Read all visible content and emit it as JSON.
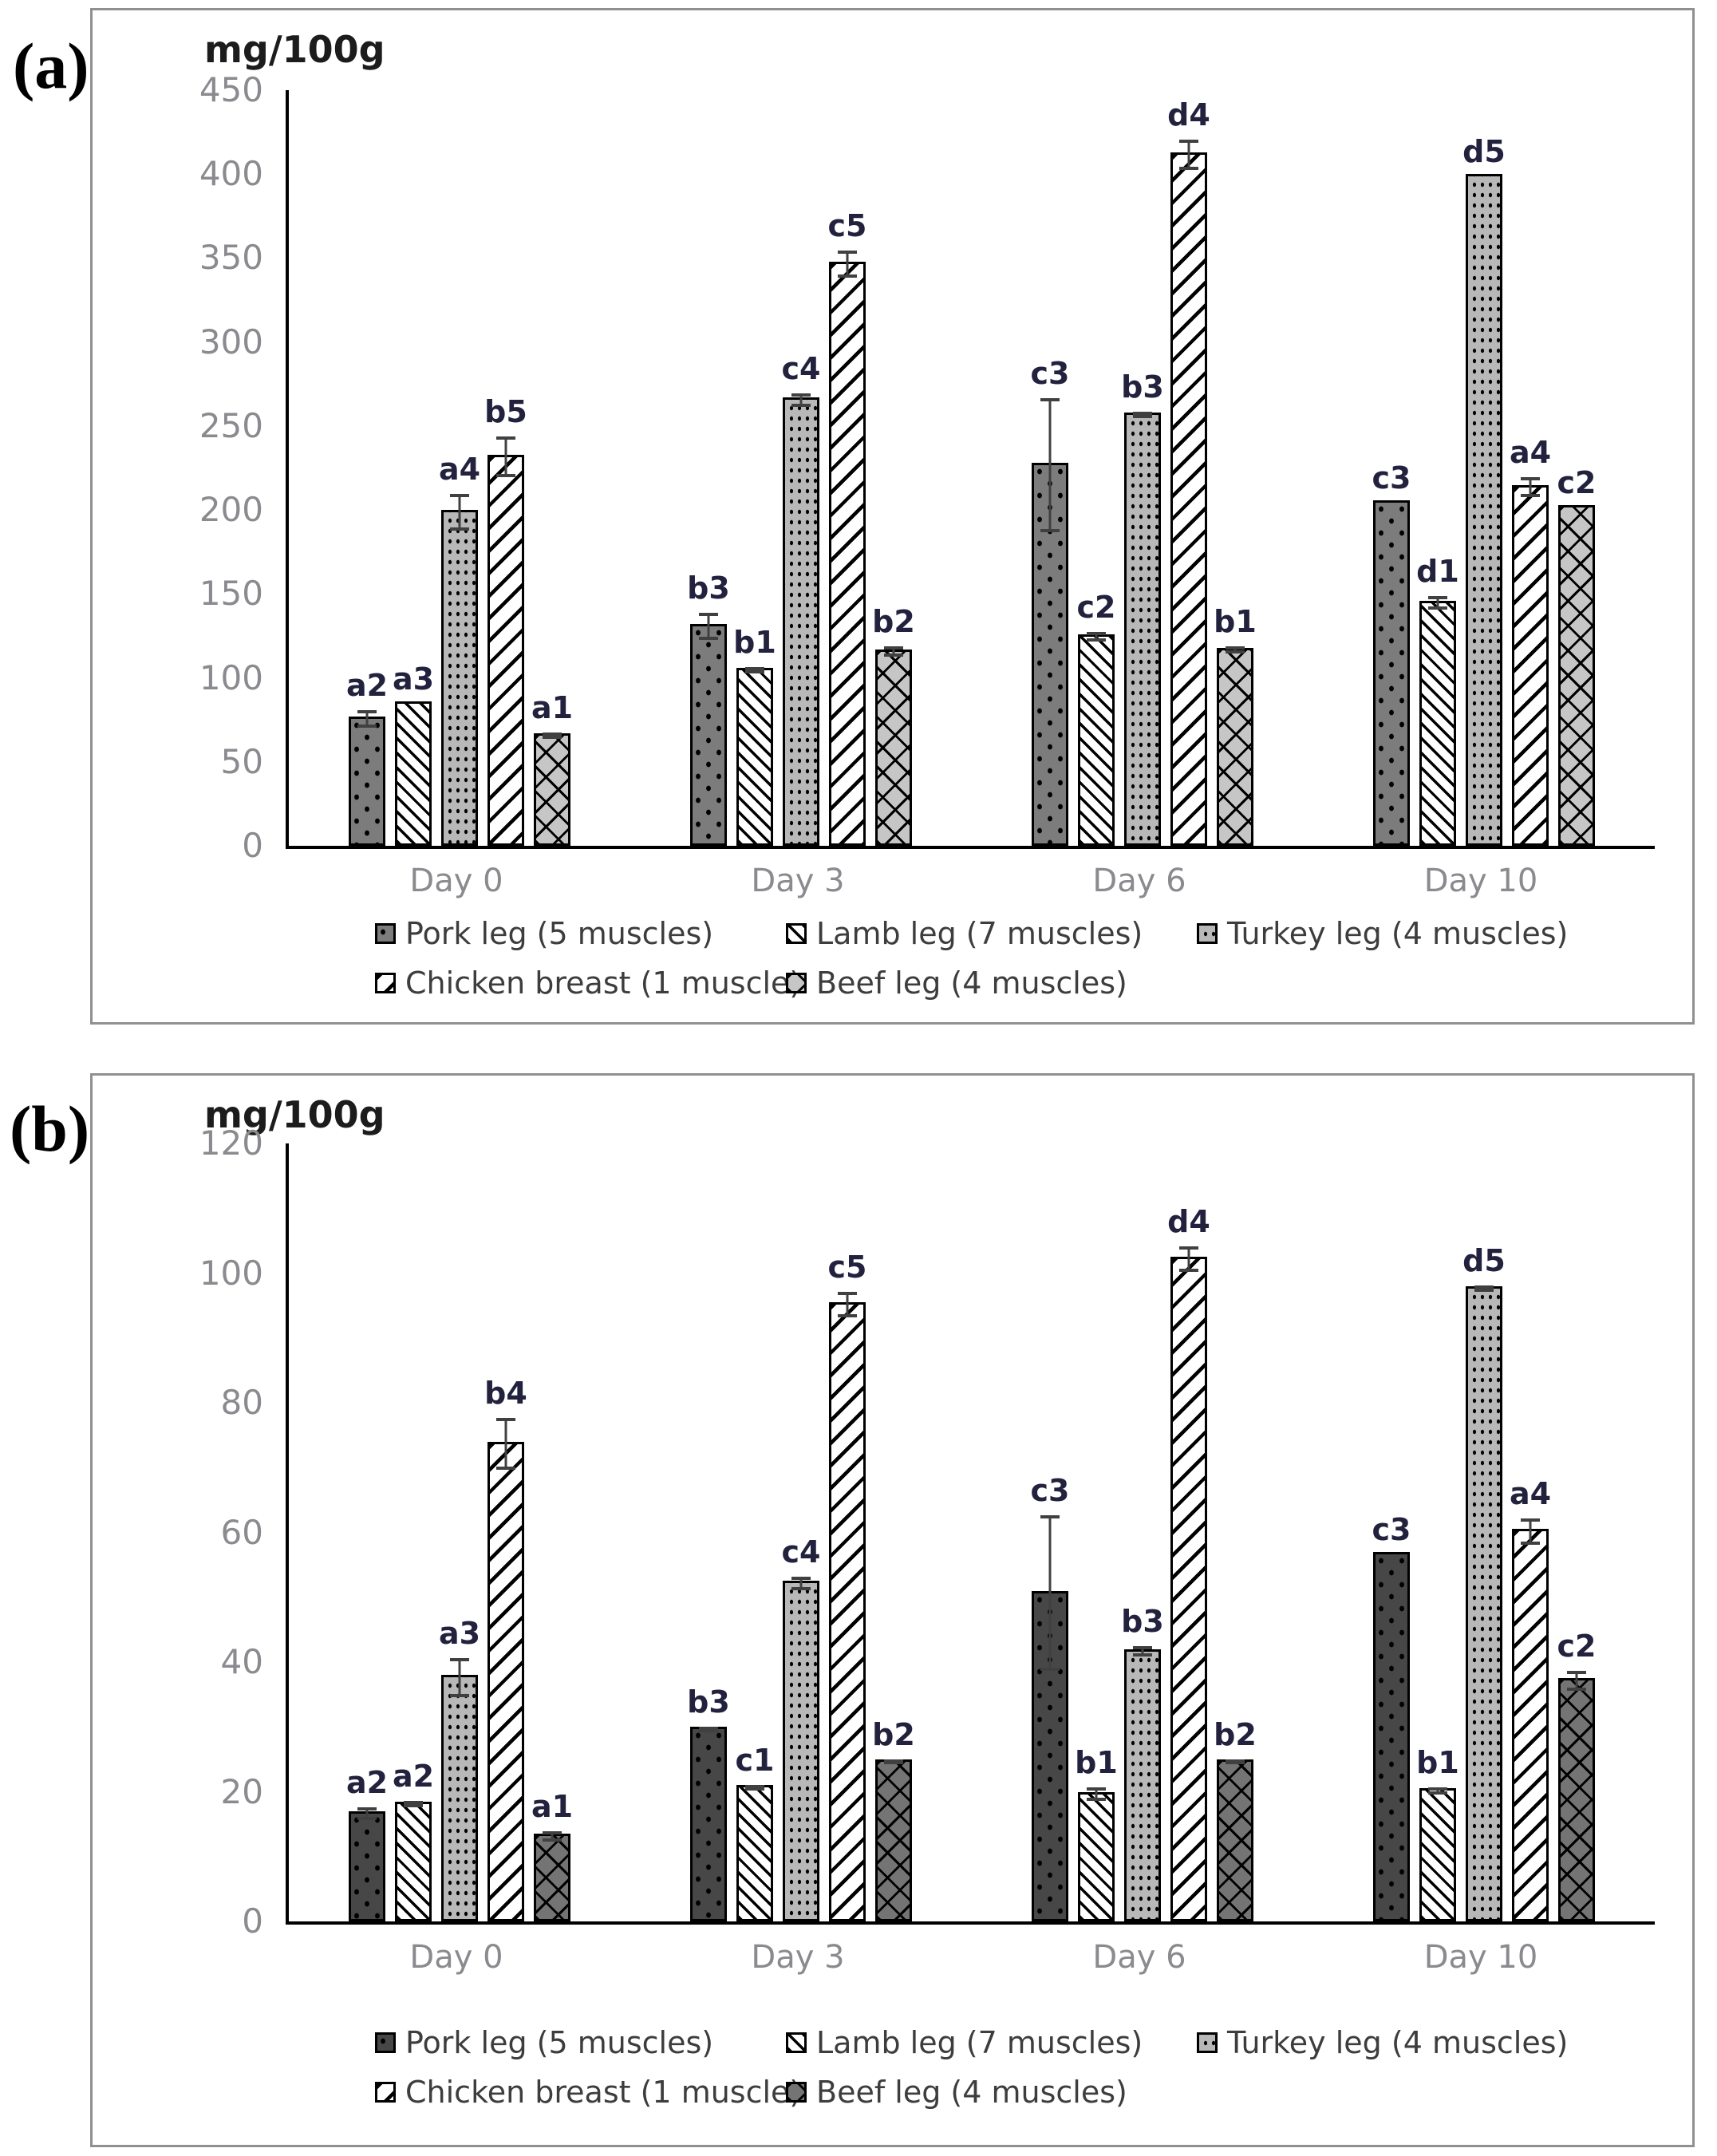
{
  "colors": {
    "pork_panel_a": "#7c7c7c",
    "pork_panel_b": "#474747",
    "turkey": "#b8b8b8",
    "beef_panel_a": "#c6c6c6",
    "beef_panel_b": "#747474",
    "axis_text": "#8a8a8f",
    "bar_label": "#22223e",
    "legend_text": "#3d3d3d",
    "axis_line": "#000000",
    "error_bar": "#404040",
    "panel_border": "#909090"
  },
  "chart_data": [
    {
      "type": "bar",
      "panel_label": "(a)",
      "title": "mg/100g",
      "ylabel": "mg/100g",
      "ylim": [
        0,
        450
      ],
      "yticks": [
        0,
        50,
        100,
        150,
        200,
        250,
        300,
        350,
        400,
        450
      ],
      "grid": false,
      "legend_position": "bottom",
      "categories": [
        "Day 0",
        "Day 3",
        "Day 6",
        "Day 10"
      ],
      "series": [
        {
          "key": "pork",
          "name": "Pork leg (5 muscles)",
          "values": [
            77,
            132,
            228,
            206
          ],
          "errors": [
            5,
            8,
            40,
            0
          ],
          "labels": [
            "a2",
            "b3",
            "c3",
            "c3"
          ]
        },
        {
          "key": "lamb",
          "name": "Lamb leg (7 muscles)",
          "values": [
            86,
            106,
            126,
            146
          ],
          "errors": [
            0,
            2,
            3,
            4
          ],
          "labels": [
            "a3",
            "b1",
            "c2",
            "d1"
          ]
        },
        {
          "key": "turkey",
          "name": "Turkey leg (4 muscles)",
          "values": [
            200,
            267,
            258,
            400
          ],
          "errors": [
            11,
            4,
            2,
            0
          ],
          "labels": [
            "a4",
            "c4",
            "b3",
            "d5"
          ]
        },
        {
          "key": "chicken",
          "name": "Chicken breast (1 muscle)",
          "values": [
            233,
            348,
            413,
            215
          ],
          "errors": [
            12,
            8,
            9,
            6
          ],
          "labels": [
            "b5",
            "c5",
            "d4",
            "a4"
          ]
        },
        {
          "key": "beef",
          "name": "Beef leg (4 muscles)",
          "values": [
            67,
            117,
            118,
            203
          ],
          "errors": [
            2,
            3,
            2,
            0
          ],
          "labels": [
            "a1",
            "b2",
            "b1",
            "c2"
          ]
        }
      ]
    },
    {
      "type": "bar",
      "panel_label": "(b)",
      "title": "mg/100g",
      "ylabel": "mg/100g",
      "ylim": [
        0,
        120
      ],
      "yticks": [
        0,
        20,
        40,
        60,
        80,
        100,
        120
      ],
      "grid": false,
      "legend_position": "bottom",
      "categories": [
        "Day 0",
        "Day 3",
        "Day 6",
        "Day 10"
      ],
      "series": [
        {
          "key": "pork",
          "name": "Pork leg (5 muscles)",
          "values": [
            17,
            30,
            51,
            57
          ],
          "errors": [
            1,
            0.4,
            12,
            0
          ],
          "labels": [
            "a2",
            "b3",
            "c3",
            "c3"
          ]
        },
        {
          "key": "lamb",
          "name": "Lamb leg (7 muscles)",
          "values": [
            18.5,
            21,
            20,
            20.5
          ],
          "errors": [
            0.5,
            0.4,
            1,
            0.5
          ],
          "labels": [
            "a2",
            "c1",
            "b1",
            "b1"
          ]
        },
        {
          "key": "turkey",
          "name": "Turkey leg (4 muscles)",
          "values": [
            38,
            52.5,
            42,
            98
          ],
          "errors": [
            3,
            1,
            0.8,
            0.5
          ],
          "labels": [
            "a3",
            "c4",
            "b3",
            "d5"
          ]
        },
        {
          "key": "chicken",
          "name": "Chicken breast (1 muscle)",
          "values": [
            74,
            95.5,
            102.5,
            60.5
          ],
          "errors": [
            4,
            2,
            2,
            2
          ],
          "labels": [
            "b4",
            "c5",
            "d4",
            "a4"
          ]
        },
        {
          "key": "beef",
          "name": "Beef leg (4 muscles)",
          "values": [
            13.5,
            25,
            25,
            37.5
          ],
          "errors": [
            0.8,
            0.4,
            0.4,
            1.5
          ],
          "labels": [
            "a1",
            "b2",
            "b2",
            "c2"
          ]
        }
      ]
    }
  ]
}
